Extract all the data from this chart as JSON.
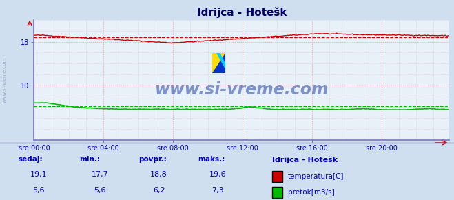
{
  "title": "Idrijca - Hotešk",
  "bg_color": "#d0dff0",
  "plot_bg_color": "#e8f0f8",
  "x_labels": [
    "sre 00:00",
    "sre 04:00",
    "sre 08:00",
    "sre 12:00",
    "sre 16:00",
    "sre 20:00"
  ],
  "x_ticks": [
    0,
    48,
    96,
    144,
    192,
    240
  ],
  "total_points": 288,
  "ylim": [
    0,
    22
  ],
  "yticks_major": [
    10,
    18
  ],
  "temp_min": 17.7,
  "temp_max": 19.6,
  "temp_avg": 18.8,
  "temp_current": 19.1,
  "flow_min": 5.6,
  "flow_max": 7.3,
  "flow_avg": 6.2,
  "flow_current": 5.6,
  "temp_color": "#cc0000",
  "flow_color": "#00bb00",
  "watermark": "www.si-vreme.com",
  "watermark_color": "#3355aa",
  "label_color": "#0000bb",
  "footer_label_color": "#0000bb",
  "station_name": "Idrijca - Hotešk",
  "series1_label": "temperatura[C]",
  "series2_label": "pretok[m3/s]",
  "bottom_headers": [
    "sedaj:",
    "min.:",
    "povpr.:",
    "maks.:"
  ],
  "bottom_values_temp": [
    "19,1",
    "17,7",
    "18,8",
    "19,6"
  ],
  "bottom_values_flow": [
    "5,6",
    "5,6",
    "6,2",
    "7,3"
  ],
  "spine_color": "#7777bb",
  "grid_major_color": "#ffaaaa",
  "grid_minor_color": "#ccccdd"
}
